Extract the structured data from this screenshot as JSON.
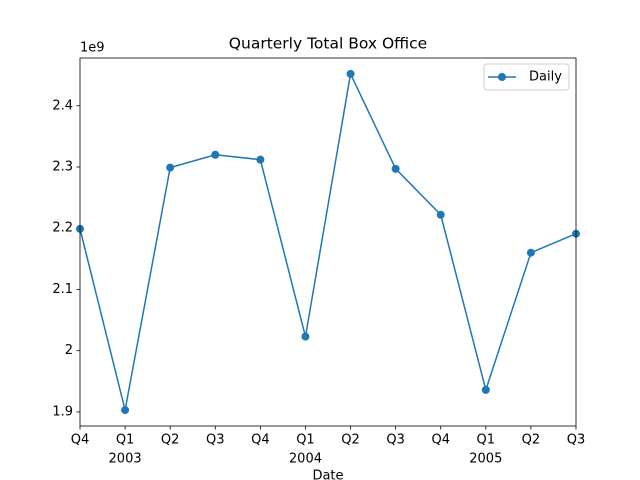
{
  "chart_data": {
    "type": "line",
    "title": "Quarterly Total Box Office",
    "x_label": "Date",
    "y_offset_label": "1e9",
    "categories": [
      "Q4",
      "Q1",
      "Q2",
      "Q3",
      "Q4",
      "Q1",
      "Q2",
      "Q3",
      "Q4",
      "Q1",
      "Q2",
      "Q3"
    ],
    "year_labels": [
      null,
      "2003",
      null,
      null,
      null,
      "2004",
      null,
      null,
      null,
      "2005",
      null,
      null
    ],
    "series": [
      {
        "name": "Daily",
        "color": "#1f77b4",
        "values": [
          2.199,
          1.903,
          2.299,
          2.32,
          2.312,
          2.023,
          2.452,
          2.297,
          2.222,
          1.936,
          2.16,
          2.191
        ]
      }
    ],
    "ylim": [
      1.877,
      2.478
    ],
    "yticks": [
      1.9,
      2.0,
      2.1,
      2.2,
      2.3,
      2.4
    ],
    "legend": "upper right",
    "grid": false
  }
}
